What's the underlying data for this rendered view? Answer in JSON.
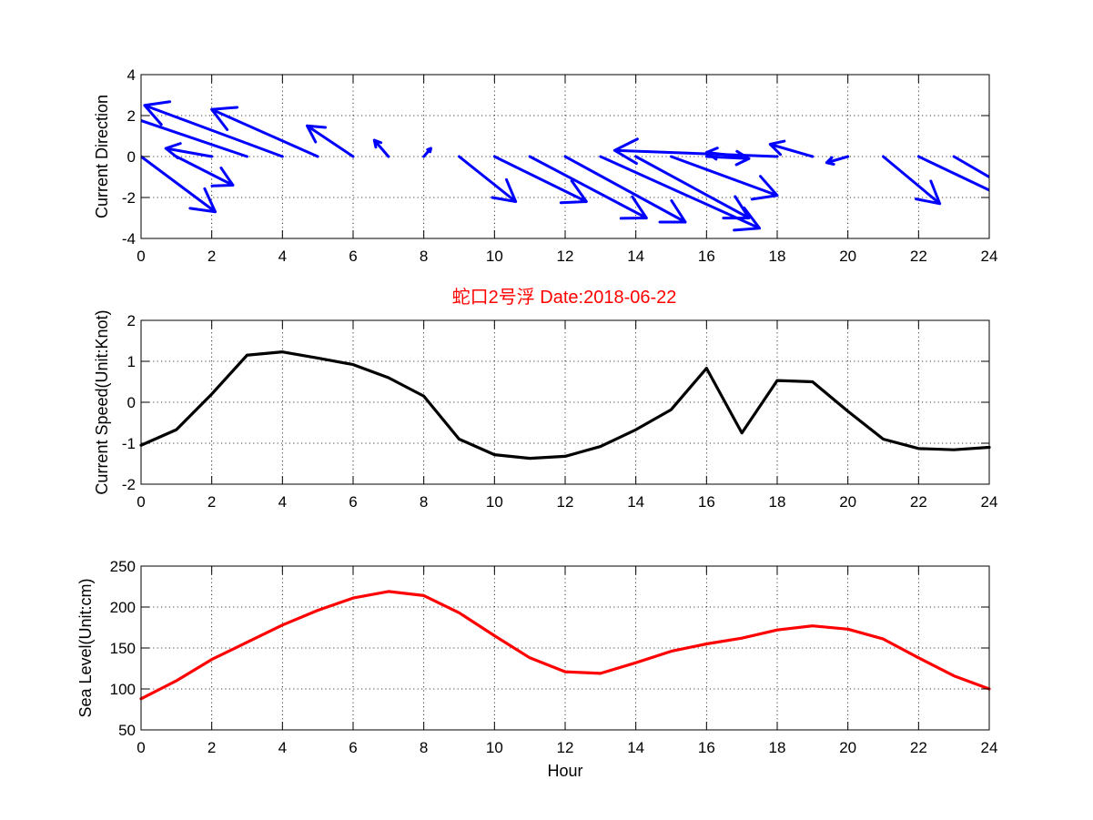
{
  "figure": {
    "title": "蛇口2号浮   Date:2018-06-22"
  },
  "chart_data": [
    {
      "type": "quiver",
      "ylabel": "Current Direction",
      "xlabel": "",
      "xlim": [
        0,
        24
      ],
      "ylim": [
        -4,
        4
      ],
      "xticks": [
        0,
        2,
        4,
        6,
        8,
        10,
        12,
        14,
        16,
        18,
        20,
        22,
        24
      ],
      "yticks": [
        -4,
        -2,
        0,
        2,
        4
      ],
      "grid": true,
      "color": "#0000ff",
      "arrows": {
        "x": [
          0,
          1,
          2,
          3,
          4,
          5,
          6,
          7,
          8,
          9,
          10,
          11,
          12,
          13,
          14,
          15,
          16,
          17,
          18,
          19,
          20,
          21,
          22,
          23,
          24
        ],
        "u": [
          2.1,
          1.6,
          -1.3,
          -4.1,
          -3.9,
          -3.0,
          -1.3,
          -0.4,
          0.2,
          1.6,
          2.6,
          3.3,
          3.4,
          4.5,
          3.2,
          3.0,
          1.2,
          -1.0,
          -4.6,
          -1.2,
          -0.6,
          1.6,
          2.8,
          2.8,
          0.0
        ],
        "v": [
          -2.7,
          -1.4,
          0.4,
          2.4,
          2.5,
          2.3,
          1.5,
          0.8,
          0.4,
          -2.2,
          -2.2,
          -3.0,
          -3.2,
          -3.5,
          -3.0,
          -1.9,
          -0.1,
          0.2,
          0.3,
          0.6,
          -0.3,
          -2.3,
          -2.3,
          -2.8,
          0.0
        ]
      }
    },
    {
      "type": "line",
      "ylabel": "Current Speed(Unit:Knot)",
      "xlabel": "",
      "xlim": [
        0,
        24
      ],
      "ylim": [
        -2,
        2
      ],
      "xticks": [
        0,
        2,
        4,
        6,
        8,
        10,
        12,
        14,
        16,
        18,
        20,
        22,
        24
      ],
      "yticks": [
        -2,
        -1,
        0,
        1,
        2
      ],
      "grid": true,
      "series": [
        {
          "color": "#000000",
          "x": [
            0,
            1,
            2,
            3,
            4,
            5,
            6,
            7,
            8,
            9,
            10,
            11,
            12,
            13,
            14,
            15,
            16,
            17,
            18,
            19,
            20,
            21,
            22,
            23,
            24
          ],
          "values": [
            -1.05,
            -0.67,
            0.2,
            1.15,
            1.23,
            1.08,
            0.92,
            0.6,
            0.15,
            -0.9,
            -1.28,
            -1.37,
            -1.32,
            -1.08,
            -0.67,
            -0.18,
            0.83,
            -0.75,
            0.53,
            0.5,
            -0.22,
            -0.9,
            -1.13,
            -1.16,
            -1.1
          ]
        }
      ]
    },
    {
      "type": "line",
      "ylabel": "Sea Level(Unit:cm)",
      "xlabel": "Hour",
      "xlim": [
        0,
        24
      ],
      "ylim": [
        50,
        250
      ],
      "xticks": [
        0,
        2,
        4,
        6,
        8,
        10,
        12,
        14,
        16,
        18,
        20,
        22,
        24
      ],
      "yticks": [
        50,
        100,
        150,
        200,
        250
      ],
      "grid": true,
      "series": [
        {
          "color": "#ff0000",
          "x": [
            0,
            1,
            2,
            3,
            4,
            5,
            6,
            7,
            8,
            9,
            10,
            11,
            12,
            13,
            14,
            15,
            16,
            17,
            18,
            19,
            20,
            21,
            22,
            23,
            24
          ],
          "values": [
            88,
            110,
            136,
            157,
            178,
            196,
            211,
            219,
            214,
            193,
            165,
            138,
            121,
            119,
            132,
            146,
            155,
            162,
            172,
            177,
            173,
            161,
            138,
            116,
            100
          ]
        }
      ]
    }
  ]
}
